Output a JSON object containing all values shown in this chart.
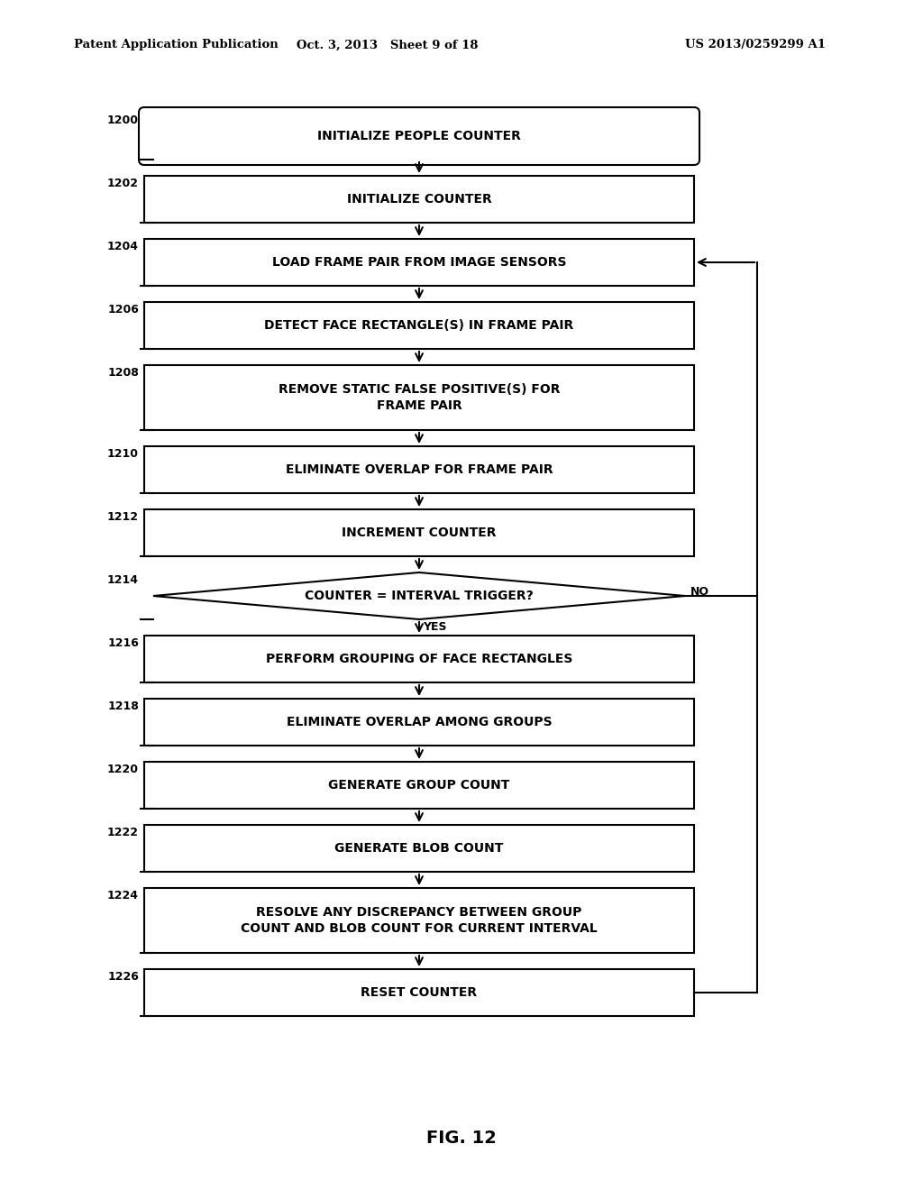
{
  "header_left": "Patent Application Publication",
  "header_mid": "Oct. 3, 2013   Sheet 9 of 18",
  "header_right": "US 2013/0259299 A1",
  "fig_label": "FIG. 12",
  "bg_color": "#ffffff",
  "border_color": "#000000",
  "text_color": "#000000",
  "nodes": [
    {
      "id": "1200",
      "label": "INITIALIZE PEOPLE COUNTER",
      "type": "rounded",
      "row": 0
    },
    {
      "id": "1202",
      "label": "INITIALIZE COUNTER",
      "type": "rect",
      "row": 1
    },
    {
      "id": "1204",
      "label": "LOAD FRAME PAIR FROM IMAGE SENSORS",
      "type": "rect",
      "row": 2
    },
    {
      "id": "1206",
      "label": "DETECT FACE RECTANGLE(S) IN FRAME PAIR",
      "type": "rect",
      "row": 3
    },
    {
      "id": "1208",
      "label": "REMOVE STATIC FALSE POSITIVE(S) FOR\nFRAME PAIR",
      "type": "rect",
      "row": 4
    },
    {
      "id": "1210",
      "label": "ELIMINATE OVERLAP FOR FRAME PAIR",
      "type": "rect",
      "row": 5
    },
    {
      "id": "1212",
      "label": "INCREMENT COUNTER",
      "type": "rect",
      "row": 6
    },
    {
      "id": "1214",
      "label": "COUNTER = INTERVAL TRIGGER?",
      "type": "diamond",
      "row": 7
    },
    {
      "id": "1216",
      "label": "PERFORM GROUPING OF FACE RECTANGLES",
      "type": "rect",
      "row": 8
    },
    {
      "id": "1218",
      "label": "ELIMINATE OVERLAP AMONG GROUPS",
      "type": "rect",
      "row": 9
    },
    {
      "id": "1220",
      "label": "GENERATE GROUP COUNT",
      "type": "rect",
      "row": 10
    },
    {
      "id": "1222",
      "label": "GENERATE BLOB COUNT",
      "type": "rect",
      "row": 11
    },
    {
      "id": "1224",
      "label": "RESOLVE ANY DISCREPANCY BETWEEN GROUP\nCOUNT AND BLOB COUNT FOR CURRENT INTERVAL",
      "type": "rect",
      "row": 12
    },
    {
      "id": "1226",
      "label": "RESET COUNTER",
      "type": "rect",
      "row": 13
    }
  ]
}
